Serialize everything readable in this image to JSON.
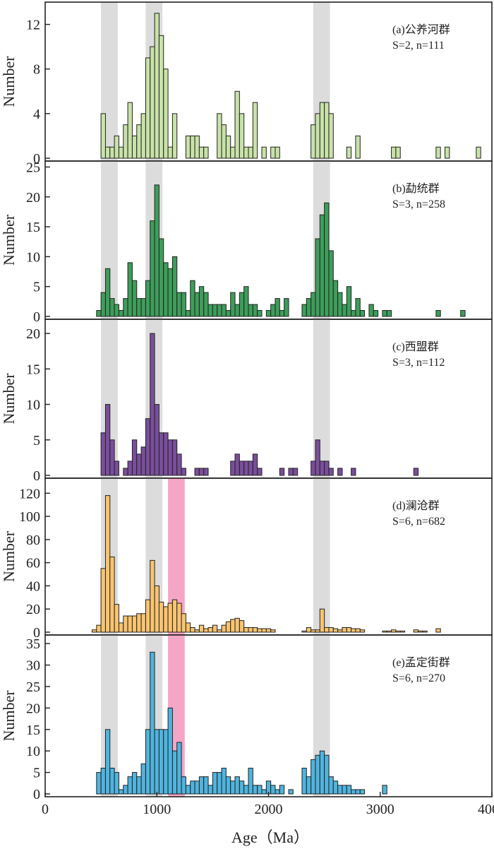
{
  "chart_data": {
    "type": "bar",
    "x_label": "Age（Ma）",
    "x_ticks": [
      0,
      1000,
      2000,
      3000,
      4000
    ],
    "x_range": [
      0,
      4000
    ],
    "bin_width": 40,
    "grey_bands": [
      [
        500,
        650
      ],
      [
        900,
        1050
      ],
      [
        2400,
        2550
      ]
    ],
    "panels": [
      {
        "id": "a",
        "title": "(a)公养河群",
        "stats": "S=2, n=111",
        "ylabel": "Number",
        "y_ticks": [
          0,
          4,
          8,
          12
        ],
        "y_range": [
          0,
          14
        ],
        "color": "#c8e2a8",
        "pink_band": null,
        "bins": [
          [
            500,
            4
          ],
          [
            540,
            1
          ],
          [
            580,
            1
          ],
          [
            620,
            2
          ],
          [
            660,
            1
          ],
          [
            700,
            3
          ],
          [
            740,
            5
          ],
          [
            780,
            2
          ],
          [
            820,
            3
          ],
          [
            860,
            4
          ],
          [
            900,
            9
          ],
          [
            940,
            10
          ],
          [
            980,
            13
          ],
          [
            1020,
            11
          ],
          [
            1060,
            8
          ],
          [
            1100,
            1
          ],
          [
            1140,
            4
          ],
          [
            1260,
            2
          ],
          [
            1300,
            2
          ],
          [
            1340,
            2
          ],
          [
            1380,
            1
          ],
          [
            1420,
            1
          ],
          [
            1540,
            4
          ],
          [
            1580,
            3
          ],
          [
            1620,
            2
          ],
          [
            1660,
            1
          ],
          [
            1700,
            6
          ],
          [
            1740,
            4
          ],
          [
            1780,
            1
          ],
          [
            1820,
            1
          ],
          [
            1860,
            5
          ],
          [
            1940,
            1
          ],
          [
            2020,
            1
          ],
          [
            2060,
            1
          ],
          [
            2380,
            3
          ],
          [
            2420,
            4
          ],
          [
            2460,
            5
          ],
          [
            2500,
            5
          ],
          [
            2540,
            4
          ],
          [
            2700,
            1
          ],
          [
            2780,
            2
          ],
          [
            3100,
            1
          ],
          [
            3140,
            1
          ],
          [
            3500,
            1
          ],
          [
            3580,
            1
          ],
          [
            3860,
            1
          ]
        ]
      },
      {
        "id": "b",
        "title": "(b)勐统群",
        "stats": "S=3, n=258",
        "ylabel": "Number",
        "y_ticks": [
          0,
          5,
          10,
          15,
          20,
          25
        ],
        "y_range": [
          0,
          26
        ],
        "color": "#3d9e5a",
        "pink_band": null,
        "bins": [
          [
            460,
            1
          ],
          [
            500,
            4
          ],
          [
            540,
            8
          ],
          [
            580,
            3
          ],
          [
            620,
            2
          ],
          [
            660,
            1
          ],
          [
            700,
            3
          ],
          [
            740,
            9
          ],
          [
            780,
            6
          ],
          [
            820,
            3
          ],
          [
            860,
            3
          ],
          [
            900,
            6
          ],
          [
            940,
            16
          ],
          [
            980,
            22
          ],
          [
            1020,
            13
          ],
          [
            1060,
            9
          ],
          [
            1100,
            8
          ],
          [
            1140,
            10
          ],
          [
            1180,
            4
          ],
          [
            1220,
            4
          ],
          [
            1260,
            1
          ],
          [
            1300,
            6
          ],
          [
            1340,
            4
          ],
          [
            1380,
            5
          ],
          [
            1420,
            4
          ],
          [
            1460,
            2
          ],
          [
            1500,
            2
          ],
          [
            1540,
            2
          ],
          [
            1580,
            2
          ],
          [
            1620,
            1
          ],
          [
            1660,
            4
          ],
          [
            1700,
            2
          ],
          [
            1740,
            4
          ],
          [
            1780,
            5
          ],
          [
            1820,
            2
          ],
          [
            1860,
            2
          ],
          [
            1900,
            1
          ],
          [
            1980,
            1
          ],
          [
            2020,
            2
          ],
          [
            2060,
            3
          ],
          [
            2100,
            1
          ],
          [
            2140,
            3
          ],
          [
            2300,
            2
          ],
          [
            2340,
            3
          ],
          [
            2380,
            4
          ],
          [
            2420,
            13
          ],
          [
            2460,
            17
          ],
          [
            2500,
            19
          ],
          [
            2540,
            11
          ],
          [
            2580,
            6
          ],
          [
            2620,
            4
          ],
          [
            2660,
            2
          ],
          [
            2700,
            5
          ],
          [
            2740,
            1
          ],
          [
            2780,
            3
          ],
          [
            2820,
            1
          ],
          [
            2900,
            2
          ],
          [
            2940,
            1
          ],
          [
            3020,
            1
          ],
          [
            3060,
            1
          ],
          [
            3500,
            1
          ],
          [
            3720,
            1
          ]
        ]
      },
      {
        "id": "c",
        "title": "(c)西盟群",
        "stats": "S=3, n=112",
        "ylabel": "Number",
        "y_ticks": [
          0,
          5,
          10,
          15,
          20
        ],
        "y_range": [
          0,
          22
        ],
        "color": "#7a4e9c",
        "pink_band": null,
        "bins": [
          [
            500,
            6
          ],
          [
            540,
            10
          ],
          [
            580,
            5
          ],
          [
            620,
            2
          ],
          [
            700,
            1
          ],
          [
            740,
            2
          ],
          [
            780,
            5
          ],
          [
            820,
            3
          ],
          [
            860,
            4
          ],
          [
            900,
            8
          ],
          [
            940,
            20
          ],
          [
            980,
            10
          ],
          [
            1020,
            6
          ],
          [
            1060,
            6
          ],
          [
            1100,
            5
          ],
          [
            1140,
            5
          ],
          [
            1180,
            3
          ],
          [
            1220,
            1
          ],
          [
            1340,
            1
          ],
          [
            1380,
            1
          ],
          [
            1420,
            1
          ],
          [
            1660,
            2
          ],
          [
            1700,
            3
          ],
          [
            1740,
            2
          ],
          [
            1780,
            2
          ],
          [
            1820,
            2
          ],
          [
            1860,
            3
          ],
          [
            1900,
            1
          ],
          [
            2100,
            1
          ],
          [
            2180,
            1
          ],
          [
            2220,
            1
          ],
          [
            2380,
            2
          ],
          [
            2420,
            5
          ],
          [
            2460,
            2
          ],
          [
            2500,
            2
          ],
          [
            2540,
            1
          ],
          [
            2620,
            1
          ],
          [
            2740,
            1
          ],
          [
            3300,
            1
          ]
        ]
      },
      {
        "id": "d",
        "title": "(d)澜沧群",
        "stats": "S=6, n=682",
        "ylabel": "Number",
        "y_ticks": [
          0,
          20,
          40,
          60,
          80,
          100,
          120
        ],
        "y_range": [
          0,
          133
        ],
        "color": "#f9c470",
        "pink_band": [
          1100,
          1250
        ],
        "bins": [
          [
            420,
            2
          ],
          [
            460,
            6
          ],
          [
            500,
            55
          ],
          [
            540,
            118
          ],
          [
            580,
            65
          ],
          [
            620,
            24
          ],
          [
            660,
            8
          ],
          [
            700,
            14
          ],
          [
            740,
            14
          ],
          [
            780,
            14
          ],
          [
            820,
            16
          ],
          [
            860,
            16
          ],
          [
            900,
            28
          ],
          [
            940,
            62
          ],
          [
            980,
            40
          ],
          [
            1020,
            26
          ],
          [
            1060,
            22
          ],
          [
            1100,
            25
          ],
          [
            1140,
            28
          ],
          [
            1180,
            25
          ],
          [
            1220,
            16
          ],
          [
            1260,
            8
          ],
          [
            1300,
            4
          ],
          [
            1340,
            2
          ],
          [
            1380,
            6
          ],
          [
            1420,
            3
          ],
          [
            1460,
            4
          ],
          [
            1500,
            6
          ],
          [
            1540,
            2
          ],
          [
            1580,
            6
          ],
          [
            1620,
            9
          ],
          [
            1660,
            11
          ],
          [
            1700,
            12
          ],
          [
            1740,
            10
          ],
          [
            1780,
            4
          ],
          [
            1820,
            4
          ],
          [
            1860,
            4
          ],
          [
            1900,
            3
          ],
          [
            1940,
            3
          ],
          [
            1980,
            3
          ],
          [
            2020,
            2
          ],
          [
            2300,
            1
          ],
          [
            2340,
            4
          ],
          [
            2380,
            2
          ],
          [
            2420,
            2
          ],
          [
            2460,
            20
          ],
          [
            2500,
            4
          ],
          [
            2540,
            4
          ],
          [
            2580,
            3
          ],
          [
            2620,
            2
          ],
          [
            2660,
            4
          ],
          [
            2700,
            4
          ],
          [
            2740,
            3
          ],
          [
            2780,
            3
          ],
          [
            2820,
            2
          ],
          [
            3020,
            1
          ],
          [
            3060,
            1
          ],
          [
            3100,
            2
          ],
          [
            3140,
            1
          ],
          [
            3180,
            1
          ],
          [
            3300,
            2
          ],
          [
            3340,
            1
          ],
          [
            3380,
            1
          ],
          [
            3500,
            3
          ]
        ]
      },
      {
        "id": "e",
        "title": "(e)孟定街群",
        "stats": "S=6, n=270",
        "ylabel": "Number",
        "y_ticks": [
          0,
          5,
          10,
          15,
          20,
          25,
          30,
          35
        ],
        "y_range": [
          0,
          37
        ],
        "color": "#4fb4de",
        "pink_band": [
          1100,
          1250
        ],
        "bins": [
          [
            460,
            5
          ],
          [
            500,
            6
          ],
          [
            540,
            15
          ],
          [
            580,
            6
          ],
          [
            620,
            5
          ],
          [
            660,
            1
          ],
          [
            700,
            2
          ],
          [
            740,
            4
          ],
          [
            780,
            5
          ],
          [
            820,
            4
          ],
          [
            860,
            7
          ],
          [
            900,
            15
          ],
          [
            940,
            33
          ],
          [
            980,
            15
          ],
          [
            1020,
            15
          ],
          [
            1060,
            15
          ],
          [
            1100,
            20
          ],
          [
            1140,
            10
          ],
          [
            1180,
            12
          ],
          [
            1220,
            4
          ],
          [
            1260,
            2
          ],
          [
            1300,
            3
          ],
          [
            1340,
            3
          ],
          [
            1380,
            4
          ],
          [
            1420,
            4
          ],
          [
            1460,
            2
          ],
          [
            1500,
            5
          ],
          [
            1540,
            5
          ],
          [
            1580,
            6
          ],
          [
            1620,
            4
          ],
          [
            1660,
            3
          ],
          [
            1700,
            4
          ],
          [
            1740,
            3
          ],
          [
            1780,
            2
          ],
          [
            1820,
            6
          ],
          [
            1860,
            2
          ],
          [
            1900,
            2
          ],
          [
            1940,
            1
          ],
          [
            1980,
            3
          ],
          [
            2020,
            2
          ],
          [
            2060,
            1
          ],
          [
            2100,
            2
          ],
          [
            2180,
            1
          ],
          [
            2300,
            6
          ],
          [
            2340,
            4
          ],
          [
            2380,
            8
          ],
          [
            2420,
            9
          ],
          [
            2460,
            10
          ],
          [
            2500,
            9
          ],
          [
            2540,
            4
          ],
          [
            2580,
            3
          ],
          [
            2620,
            2
          ],
          [
            2660,
            2
          ],
          [
            2700,
            2
          ],
          [
            2740,
            1
          ],
          [
            2780,
            1
          ],
          [
            2820,
            1
          ],
          [
            3020,
            2
          ]
        ]
      }
    ]
  }
}
